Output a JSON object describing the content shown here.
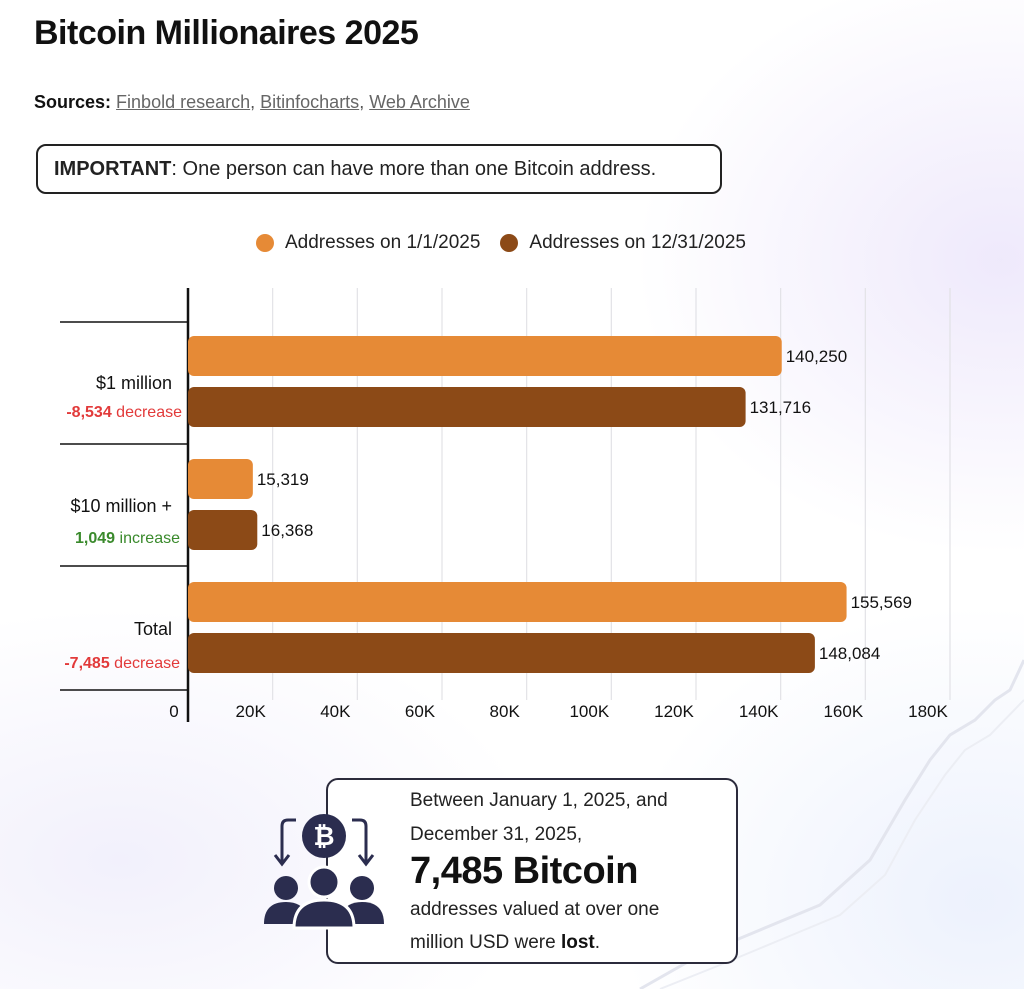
{
  "title": "Bitcoin Millionaires 2025",
  "sources": {
    "label": "Sources:",
    "links": [
      "Finbold research",
      "Bitinfocharts",
      "Web Archive"
    ]
  },
  "notice": {
    "label": "IMPORTANT",
    "text": ": One person can have more than one Bitcoin address."
  },
  "colors": {
    "series_a": "#E68A36",
    "series_b": "#8C4A17",
    "negative": "#E23A3A",
    "positive": "#3A8A2C"
  },
  "chart_data": {
    "type": "bar",
    "orientation": "horizontal",
    "categories": [
      "$1 million",
      "$10 million +",
      "Total"
    ],
    "series": [
      {
        "name": "Addresses on 1/1/2025",
        "values": [
          140250,
          15319,
          155569
        ]
      },
      {
        "name": "Addresses on 12/31/2025",
        "values": [
          131716,
          16368,
          148084
        ]
      }
    ],
    "value_labels": [
      [
        "140,250",
        "15,319",
        "155,569"
      ],
      [
        "131,716",
        "16,368",
        "148,084"
      ]
    ],
    "changes": [
      {
        "value": "-8,534",
        "word": "decrease",
        "sign": "negative"
      },
      {
        "value": "1,049",
        "word": "increase",
        "sign": "positive"
      },
      {
        "value": "-7,485",
        "word": "decrease",
        "sign": "negative"
      }
    ],
    "x_ticks": [
      "0",
      "20K",
      "40K",
      "60K",
      "80K",
      "100K",
      "120K",
      "140K",
      "160K",
      "180K"
    ],
    "xlim": [
      0,
      180000
    ],
    "grid": true,
    "legend_position": "top"
  },
  "callout": {
    "line1": "Between January 1, 2025, and",
    "line2": "December 31, 2025,",
    "big": "7,485 Bitcoin",
    "line3": "addresses valued at over one",
    "line4_text": "million USD were ",
    "line4_bold": "lost",
    "line4_end": ".",
    "icon": "bitcoin-people-icon"
  }
}
